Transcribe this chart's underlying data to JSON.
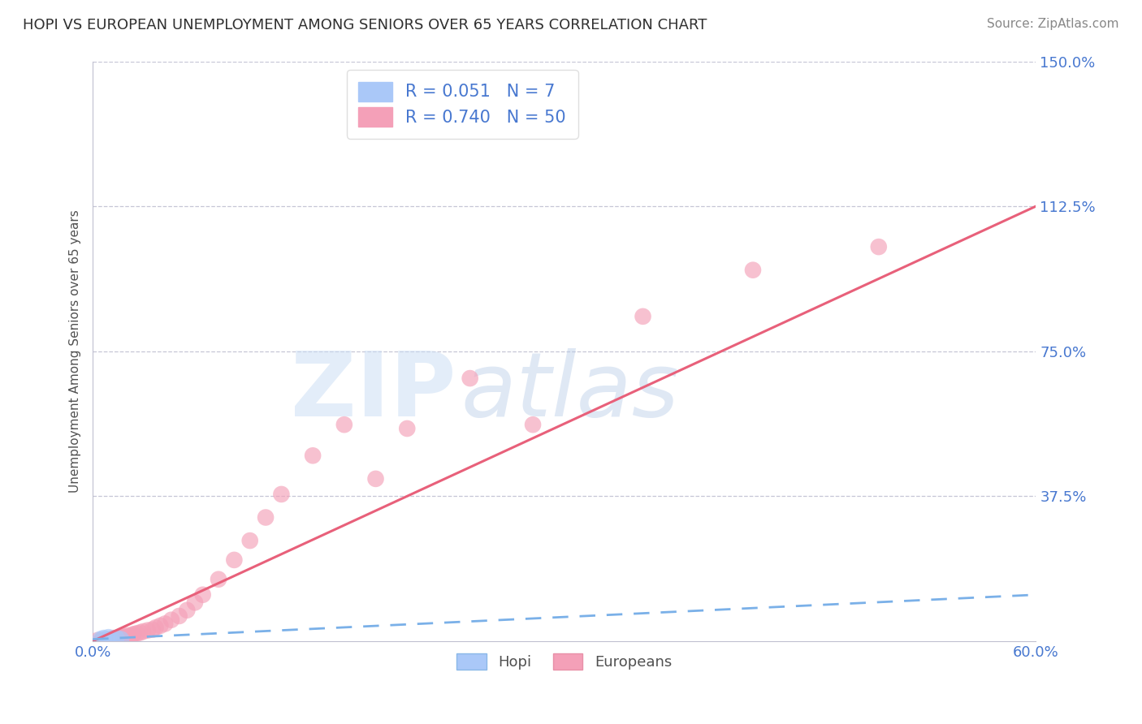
{
  "title": "HOPI VS EUROPEAN UNEMPLOYMENT AMONG SENIORS OVER 65 YEARS CORRELATION CHART",
  "source": "Source: ZipAtlas.com",
  "ylabel": "Unemployment Among Seniors over 65 years",
  "xlim": [
    0.0,
    0.6
  ],
  "ylim": [
    0.0,
    1.5
  ],
  "xticks": [
    0.0,
    0.1,
    0.2,
    0.3,
    0.4,
    0.5,
    0.6
  ],
  "xticklabels": [
    "0.0%",
    "",
    "",
    "",
    "",
    "",
    "60.0%"
  ],
  "yticks": [
    0.0,
    0.375,
    0.75,
    1.125,
    1.5
  ],
  "yticklabels": [
    "",
    "37.5%",
    "75.0%",
    "112.5%",
    "150.0%"
  ],
  "hopi_R": 0.051,
  "hopi_N": 7,
  "europeans_R": 0.74,
  "europeans_N": 50,
  "hopi_color": "#aac8f8",
  "europeans_color": "#f4a0b8",
  "hopi_line_color": "#7ab0e8",
  "europeans_line_color": "#e8607a",
  "watermark_zip": "ZIP",
  "watermark_atlas": "atlas",
  "watermark_color_zip": "#c8d8f0",
  "watermark_color_atlas": "#c8d8e8",
  "grid_color": "#c8c8d8",
  "title_color": "#303030",
  "axis_label_color": "#4878d0",
  "hopi_x": [
    0.005,
    0.007,
    0.009,
    0.01,
    0.012,
    0.015,
    0.018
  ],
  "hopi_y": [
    0.005,
    0.008,
    0.005,
    0.01,
    0.005,
    0.008,
    0.005
  ],
  "europeans_x": [
    0.003,
    0.005,
    0.006,
    0.007,
    0.008,
    0.009,
    0.01,
    0.011,
    0.012,
    0.013,
    0.014,
    0.015,
    0.016,
    0.017,
    0.018,
    0.019,
    0.02,
    0.021,
    0.022,
    0.023,
    0.024,
    0.025,
    0.026,
    0.028,
    0.03,
    0.032,
    0.035,
    0.038,
    0.04,
    0.043,
    0.046,
    0.05,
    0.055,
    0.06,
    0.065,
    0.07,
    0.08,
    0.09,
    0.1,
    0.11,
    0.12,
    0.14,
    0.16,
    0.18,
    0.2,
    0.24,
    0.28,
    0.35,
    0.42,
    0.5
  ],
  "europeans_y": [
    0.002,
    0.0,
    0.003,
    0.0,
    0.002,
    0.0,
    0.003,
    0.005,
    0.002,
    0.008,
    0.003,
    0.005,
    0.008,
    0.01,
    0.005,
    0.008,
    0.01,
    0.012,
    0.015,
    0.01,
    0.012,
    0.015,
    0.018,
    0.02,
    0.022,
    0.025,
    0.028,
    0.03,
    0.035,
    0.04,
    0.045,
    0.055,
    0.065,
    0.08,
    0.1,
    0.12,
    0.16,
    0.21,
    0.26,
    0.32,
    0.38,
    0.48,
    0.56,
    0.42,
    0.55,
    0.68,
    0.56,
    0.84,
    0.96,
    1.02
  ],
  "euro_line_x0": 0.0,
  "euro_line_y0": -0.005,
  "euro_line_x1": 0.6,
  "euro_line_y1": 1.125
}
